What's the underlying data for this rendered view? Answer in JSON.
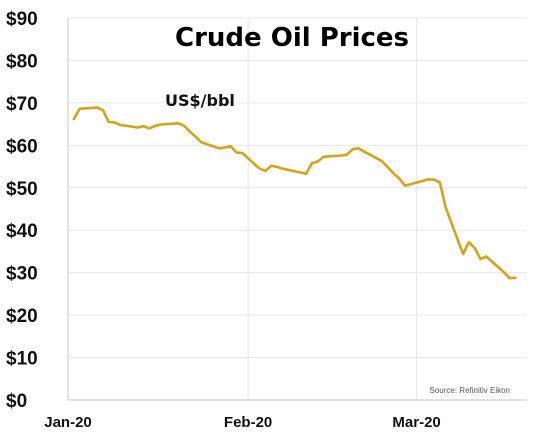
{
  "chart_data": {
    "type": "line",
    "title": "Crude Oil Prices",
    "unit_label": "US$/bbl",
    "source": "Source: Refinitiv Eikon",
    "xlabel": "",
    "ylabel": "",
    "x_ticks": [
      "Jan-20",
      "Feb-20",
      "Mar-20"
    ],
    "y_ticks": [
      "$0",
      "$10",
      "$20",
      "$30",
      "$40",
      "$50",
      "$60",
      "$70",
      "$80",
      "$90"
    ],
    "ylim": [
      0,
      90
    ],
    "grid": true,
    "colors": {
      "line": "#d4a319"
    },
    "series": [
      {
        "x": [
          "2020-01-02",
          "2020-01-03",
          "2020-01-06",
          "2020-01-07",
          "2020-01-08",
          "2020-01-09",
          "2020-01-10",
          "2020-01-13",
          "2020-01-14",
          "2020-01-15",
          "2020-01-16",
          "2020-01-17",
          "2020-01-20",
          "2020-01-21",
          "2020-01-22",
          "2020-01-23",
          "2020-01-24",
          "2020-01-27",
          "2020-01-28",
          "2020-01-29",
          "2020-01-30",
          "2020-01-31",
          "2020-02-03",
          "2020-02-04",
          "2020-02-05",
          "2020-02-06",
          "2020-02-07",
          "2020-02-10",
          "2020-02-11",
          "2020-02-12",
          "2020-02-13",
          "2020-02-14",
          "2020-02-17",
          "2020-02-18",
          "2020-02-19",
          "2020-02-20",
          "2020-02-21",
          "2020-02-24",
          "2020-02-25",
          "2020-02-26",
          "2020-02-27",
          "2020-02-28",
          "2020-03-02",
          "2020-03-03",
          "2020-03-04",
          "2020-03-05",
          "2020-03-06",
          "2020-03-09",
          "2020-03-10",
          "2020-03-11",
          "2020-03-12",
          "2020-03-13",
          "2020-03-16",
          "2020-03-17",
          "2020-03-18"
        ],
        "values": [
          66.2,
          68.6,
          68.9,
          68.3,
          65.5,
          65.4,
          64.8,
          64.2,
          64.5,
          64.0,
          64.6,
          64.9,
          65.2,
          64.6,
          63.2,
          62.0,
          60.7,
          59.3,
          59.5,
          59.8,
          58.3,
          58.2,
          54.5,
          54.0,
          55.2,
          54.9,
          54.5,
          53.6,
          53.3,
          55.8,
          56.2,
          57.3,
          57.6,
          57.8,
          59.1,
          59.3,
          58.5,
          56.3,
          54.9,
          53.4,
          52.2,
          50.5,
          51.6,
          52.0,
          51.9,
          51.3,
          45.3,
          34.4,
          37.2,
          35.8,
          33.2,
          33.8,
          30.1,
          28.7,
          28.8
        ]
      }
    ]
  }
}
